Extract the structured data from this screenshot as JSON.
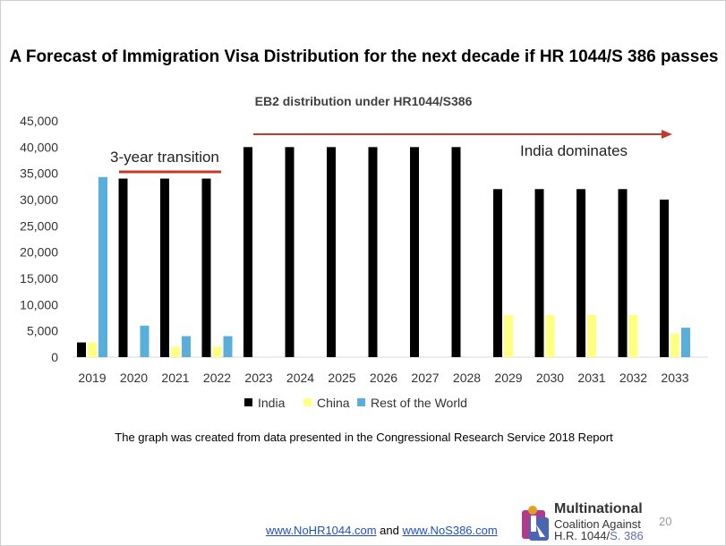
{
  "slide": {
    "title": "A Forecast of Immigration Visa Distribution for the next decade if HR 1044/S 386 passes",
    "footnote": "The graph was created from data presented in the Congressional Research Service 2018 Report",
    "link1": "www.NoHR1044.com",
    "link_and": "and",
    "link2": "www.NoS386.com",
    "logo": {
      "line1": "Multinational",
      "line2": "Coalition Against",
      "line3a": "H.R. 1044/",
      "line3b": "S. 386"
    },
    "page_number": "20"
  },
  "colors": {
    "india": "#000000",
    "china": "#ffff80",
    "row": "#5aaedc",
    "arrow": "#c0392b"
  },
  "chart_data": {
    "type": "bar",
    "title": "EB2 distribution under HR1044/S386",
    "categories": [
      "2019",
      "2020",
      "2021",
      "2022",
      "2023",
      "2024",
      "2025",
      "2026",
      "2027",
      "2028",
      "2029",
      "2030",
      "2031",
      "2032",
      "2033"
    ],
    "series": [
      {
        "name": "India",
        "values": [
          2800,
          34000,
          34000,
          34000,
          40000,
          40000,
          40000,
          40000,
          40000,
          40000,
          32000,
          32000,
          32000,
          32000,
          30000
        ]
      },
      {
        "name": "China",
        "values": [
          2800,
          0,
          2000,
          2000,
          0,
          0,
          0,
          0,
          0,
          0,
          8000,
          8000,
          8000,
          8000,
          4500
        ]
      },
      {
        "name": "Rest of the World",
        "values": [
          34300,
          6000,
          4000,
          4000,
          0,
          0,
          0,
          0,
          0,
          0,
          0,
          0,
          0,
          0,
          5600
        ]
      }
    ],
    "ylim": [
      0,
      45000
    ],
    "yticks": [
      "0",
      "5,000",
      "10,000",
      "15,000",
      "20,000",
      "25,000",
      "30,000",
      "35,000",
      "40,000",
      "45,000"
    ],
    "grid": false,
    "legend_position": "bottom",
    "annotations": [
      {
        "text": "3-year transition"
      },
      {
        "text": "India dominates"
      }
    ]
  }
}
